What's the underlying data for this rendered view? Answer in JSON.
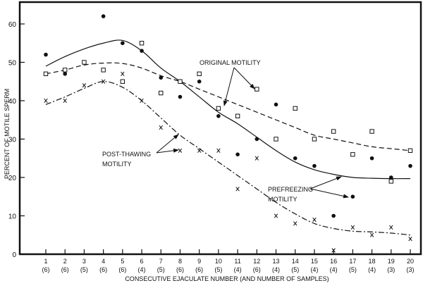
{
  "chart_data": {
    "type": "scatter",
    "title": "",
    "xlabel": "CONSECUTIVE EJACULATE NUMBER (AND NUMBER OF SAMPLES)",
    "ylabel": "PERCENT OF MOTILE SPERM",
    "xlim": [
      0,
      20.5
    ],
    "ylim": [
      0,
      65
    ],
    "yticks": [
      0,
      10,
      20,
      30,
      40,
      50,
      60
    ],
    "grid": false,
    "x": [
      1,
      2,
      3,
      4,
      5,
      6,
      7,
      8,
      9,
      10,
      11,
      12,
      13,
      14,
      15,
      16,
      17,
      18,
      19,
      20
    ],
    "sample_counts": [
      "(6)",
      "(6)",
      "(5)",
      "(6)",
      "(6)",
      "(4)",
      "(5)",
      "(6)",
      "(6)",
      "(5)",
      "(4)",
      "(6)",
      "(4)",
      "(5)",
      "(4)",
      "(4)",
      "(5)",
      "(4)",
      "(3)",
      "(3)"
    ],
    "series": [
      {
        "name": "PREFREEZING MOTILITY",
        "marker": "filled-circle",
        "line": "solid",
        "values": [
          52,
          47,
          50,
          62,
          55,
          53,
          46,
          41,
          45,
          36,
          26,
          30,
          39,
          25,
          23,
          10,
          15,
          25,
          20,
          23
        ],
        "curve": [
          49,
          51.5,
          53.5,
          55,
          55.7,
          53,
          48.5,
          45,
          41,
          37,
          34,
          30.5,
          27,
          24,
          22,
          20.8,
          20,
          19.8,
          19.7,
          19.7
        ]
      },
      {
        "name": "ORIGINAL MOTILITY",
        "marker": "open-square",
        "line": "dashed",
        "values": [
          47,
          48,
          50,
          48,
          45,
          55,
          42,
          45,
          47,
          38,
          36,
          43,
          30,
          38,
          30,
          32,
          26,
          32,
          19,
          27
        ],
        "curve": [
          47,
          48,
          49.3,
          49.8,
          49.7,
          48.5,
          46.5,
          45,
          43,
          41,
          39,
          37,
          35,
          33,
          31,
          30,
          29,
          28,
          27.5,
          27
        ]
      },
      {
        "name": "POST-THAWING MOTILITY",
        "marker": "x",
        "line": "dash-dot",
        "values": [
          40,
          40,
          44,
          45,
          47,
          40,
          33,
          27,
          27,
          27,
          17,
          25,
          10,
          8,
          9,
          1,
          7,
          5,
          7,
          4
        ],
        "curve": [
          39,
          41,
          43.2,
          45,
          43.5,
          40,
          35.5,
          31,
          27.5,
          24,
          20.5,
          17,
          13.5,
          10.5,
          8,
          6.7,
          6,
          5.8,
          5.5,
          5
        ]
      }
    ],
    "annotations": [
      {
        "lines": [
          "ORIGINAL MOTILITY"
        ],
        "series": "ORIGINAL MOTILITY"
      },
      {
        "lines": [
          "POST-THAWING",
          "MOTILITY"
        ],
        "series": "POST-THAWING MOTILITY"
      },
      {
        "lines": [
          "PREFREEZING",
          "MOTILITY"
        ],
        "series": "PREFREEZING MOTILITY"
      }
    ]
  }
}
